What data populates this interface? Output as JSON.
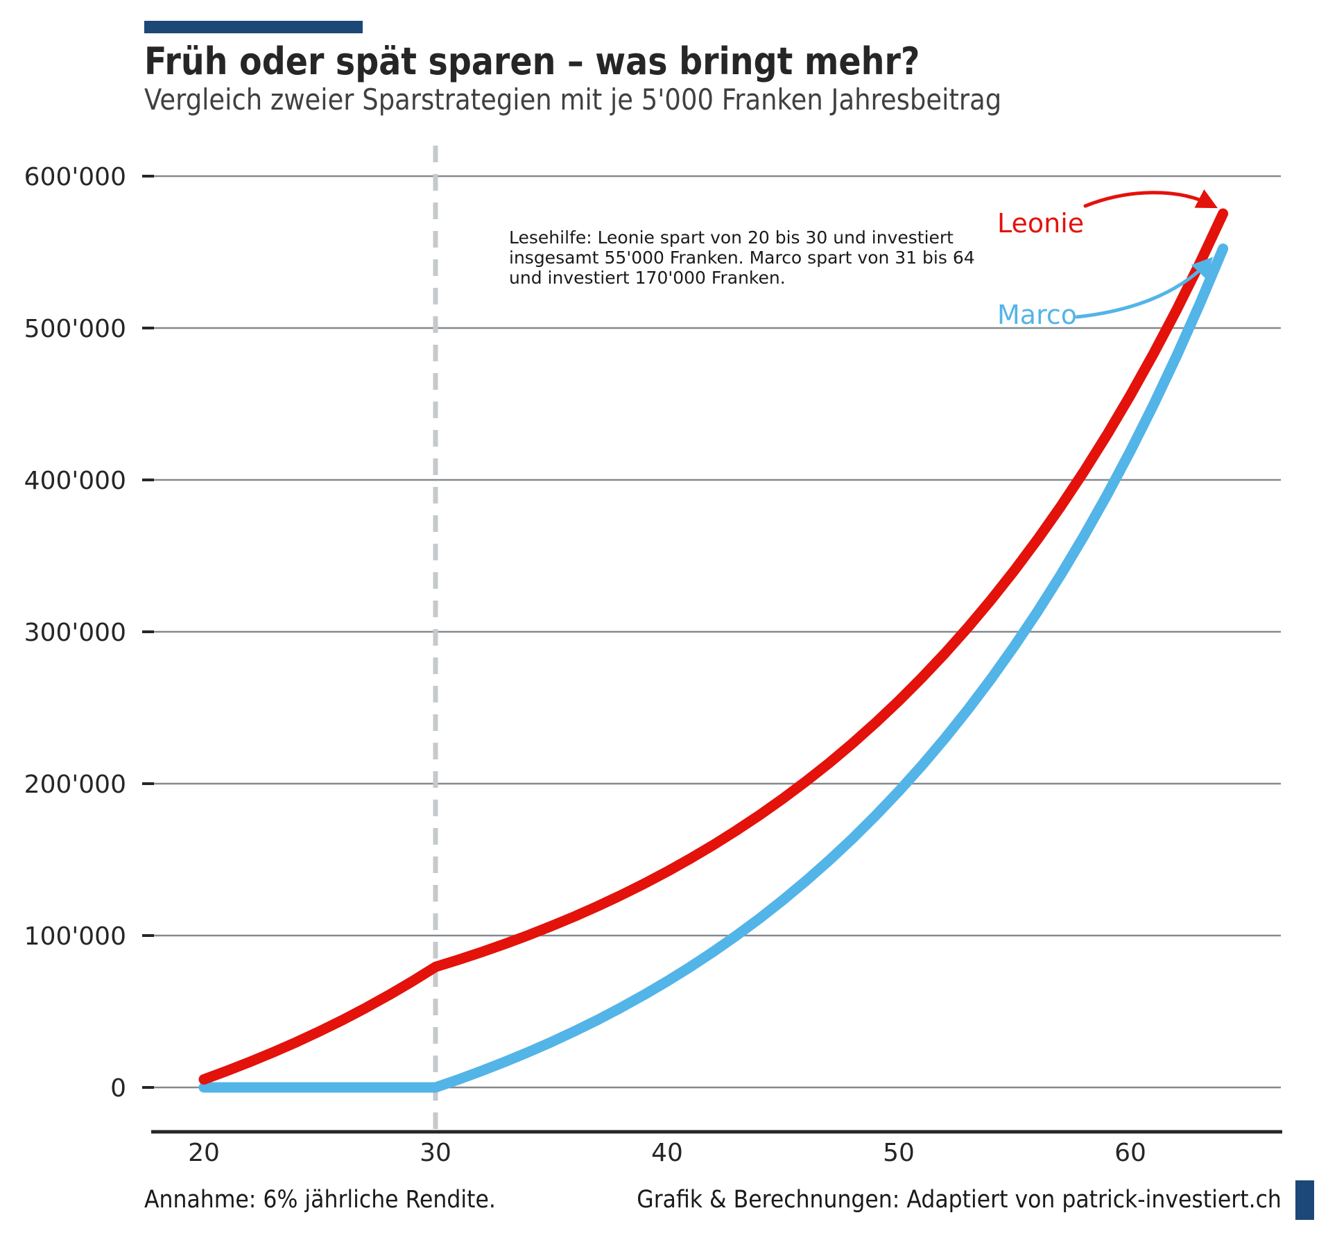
{
  "colors": {
    "leonie_red": "#e3120b",
    "marco_blue": "#53b4e8",
    "accent_navy": "#1c4877",
    "gridline_gray": "#85898d",
    "dashed_gray": "#c6c9cb",
    "axis_dark": "#262626"
  },
  "footer": {
    "left": "Annahme: 6% jährliche Rendite.",
    "right": "Grafik & Berechnungen: Adaptiert von patrick-investiert.ch"
  },
  "chart_data": {
    "type": "line",
    "title": "Früh oder spät sparen – was bringt mehr?",
    "subtitle": "Vergleich zweier Sparstrategien mit je 5'000 Franken Jahresbeitrag",
    "xlabel": "",
    "ylabel": "",
    "annotation_lines": [
      "Lesehilfe: Leonie spart von 20 bis 30 und investiert",
      "insgesamt 55'000 Franken. Marco spart von 31 bis 64",
      "und investiert 170'000 Franken."
    ],
    "x_ages": [
      20,
      21,
      22,
      23,
      24,
      25,
      26,
      27,
      28,
      29,
      30,
      31,
      32,
      33,
      34,
      35,
      36,
      37,
      38,
      39,
      40,
      41,
      42,
      43,
      44,
      45,
      46,
      47,
      48,
      49,
      50,
      51,
      52,
      53,
      54,
      55,
      56,
      57,
      58,
      59,
      60,
      61,
      62,
      63,
      64
    ],
    "series": [
      {
        "name": "Leonie",
        "color": "#e3120b",
        "values": [
          5300,
          10918,
          16873,
          23185,
          29877,
          36969,
          44487,
          52456,
          60903,
          69858,
          79350,
          84111,
          89157,
          94507,
          100177,
          106188,
          112559,
          119313,
          126471,
          134060,
          142103,
          150629,
          159667,
          169247,
          179402,
          190166,
          201576,
          213670,
          226490,
          240080,
          254484,
          269753,
          285939,
          303095,
          321280,
          340557,
          360991,
          382650,
          405609,
          429946,
          455742,
          483087,
          512072,
          542796,
          575364
        ]
      },
      {
        "name": "Marco",
        "color": "#53b4e8",
        "values": [
          0,
          0,
          0,
          0,
          0,
          0,
          0,
          0,
          0,
          0,
          0,
          5300,
          10918,
          16873,
          23185,
          29877,
          36969,
          44487,
          52456,
          60903,
          69858,
          79350,
          89411,
          100076,
          111380,
          123363,
          136065,
          149529,
          163801,
          178929,
          194965,
          211963,
          229981,
          249080,
          269325,
          290784,
          313531,
          337643,
          363202,
          390294,
          419012,
          449453,
          481720,
          515923,
          552179
        ]
      }
    ],
    "xticks": [
      20,
      30,
      40,
      50,
      60
    ],
    "ytick_values": [
      0,
      100000,
      200000,
      300000,
      400000,
      500000,
      600000
    ],
    "ytick_labels": [
      "0",
      "100'000",
      "200'000",
      "300'000",
      "400'000",
      "500'000",
      "600'000"
    ],
    "xlim": [
      17.8,
      66.5
    ],
    "ylim": [
      0,
      600000
    ],
    "grid": "horizontal",
    "vline_x": 30,
    "legend_position": "inline-labels-right"
  }
}
